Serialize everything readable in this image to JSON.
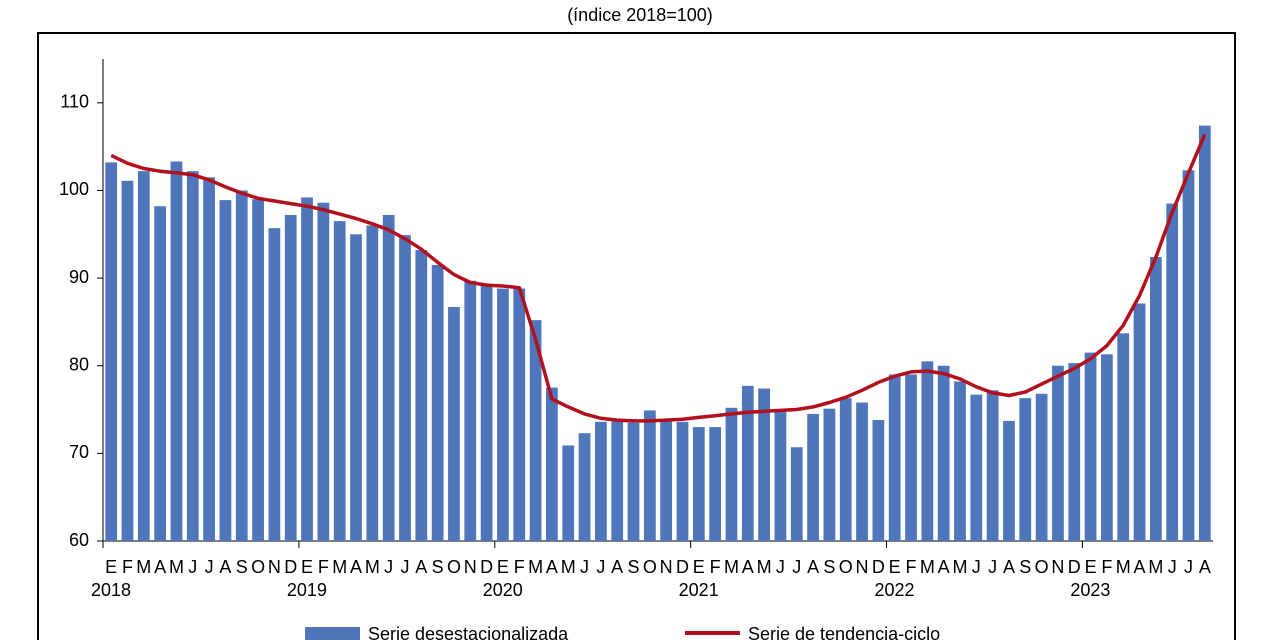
{
  "chart_data": {
    "type": "bar-line",
    "title": "(índice 2018=100)",
    "categories": [
      "E",
      "F",
      "M",
      "A",
      "M",
      "J",
      "J",
      "A",
      "S",
      "O",
      "N",
      "D",
      "E",
      "F",
      "M",
      "A",
      "M",
      "J",
      "J",
      "A",
      "S",
      "O",
      "N",
      "D",
      "E",
      "F",
      "M",
      "A",
      "M",
      "J",
      "J",
      "A",
      "S",
      "O",
      "N",
      "D",
      "E",
      "F",
      "M",
      "A",
      "M",
      "J",
      "J",
      "A",
      "S",
      "O",
      "N",
      "D",
      "E",
      "F",
      "M",
      "A",
      "M",
      "J",
      "J",
      "A",
      "S",
      "O",
      "N",
      "D",
      "E",
      "F",
      "M",
      "A",
      "M",
      "J",
      "J",
      "A"
    ],
    "year_labels": [
      "2018",
      "2019",
      "2020",
      "2021",
      "2022",
      "2023"
    ],
    "series": [
      {
        "name": "Serie desestacionalizada",
        "kind": "bar",
        "color": "#4f75bb",
        "values": [
          103.2,
          101.1,
          102.2,
          98.2,
          103.3,
          102.2,
          101.5,
          98.9,
          100.0,
          99.0,
          95.7,
          97.2,
          99.2,
          98.6,
          96.5,
          95.0,
          96.0,
          97.2,
          94.9,
          93.2,
          91.5,
          86.7,
          89.7,
          89.3,
          88.8,
          88.8,
          85.2,
          77.5,
          70.9,
          72.3,
          73.6,
          73.7,
          73.5,
          74.9,
          73.8,
          73.6,
          73.0,
          73.0,
          75.2,
          77.7,
          77.4,
          74.8,
          70.7,
          74.5,
          75.1,
          76.3,
          75.8,
          73.8,
          79.0,
          79.0,
          80.5,
          80.0,
          78.2,
          76.7,
          77.2,
          73.7,
          76.3,
          76.8,
          80.0,
          80.3,
          81.5,
          81.3,
          83.7,
          87.1,
          92.4,
          98.5,
          102.3,
          107.4
        ]
      },
      {
        "name": "Serie de tendencia-ciclo",
        "kind": "line",
        "color": "#b3101e",
        "values": [
          104.0,
          103.1,
          102.5,
          102.2,
          102.0,
          101.8,
          101.2,
          100.4,
          99.7,
          99.1,
          98.8,
          98.5,
          98.2,
          97.8,
          97.3,
          96.8,
          96.2,
          95.5,
          94.5,
          93.3,
          91.8,
          90.4,
          89.5,
          89.2,
          89.1,
          88.9,
          83.0,
          76.2,
          75.3,
          74.5,
          74.0,
          73.8,
          73.7,
          73.7,
          73.8,
          73.9,
          74.1,
          74.3,
          74.5,
          74.7,
          74.8,
          74.9,
          75.0,
          75.3,
          75.8,
          76.4,
          77.2,
          78.1,
          78.8,
          79.3,
          79.4,
          79.1,
          78.5,
          77.6,
          76.9,
          76.6,
          77.0,
          77.9,
          78.8,
          79.7,
          80.8,
          82.3,
          84.6,
          88.0,
          92.4,
          97.5,
          102.0,
          106.4
        ]
      }
    ],
    "ylim": [
      60,
      115
    ],
    "yticks": [
      60,
      70,
      80,
      90,
      100,
      110
    ],
    "grid": false
  }
}
